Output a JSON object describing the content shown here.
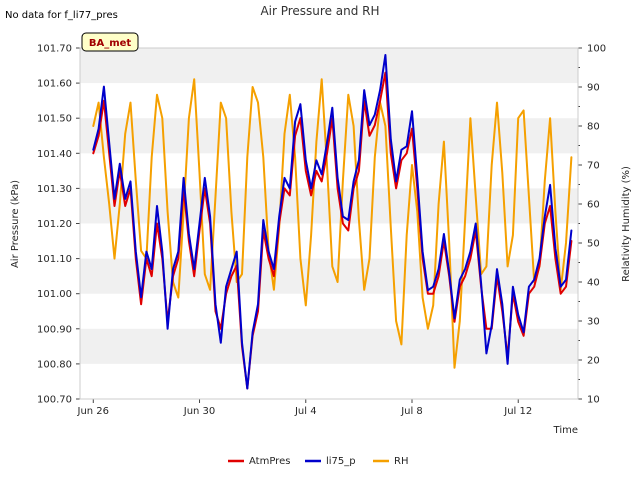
{
  "header": {
    "no_data_note": "No data for f_li77_pres",
    "badge_text": "BA_met"
  },
  "chart_data": {
    "type": "line",
    "title": "Air Pressure and RH",
    "xlabel": "Time",
    "ylabel": "Air Pressure (kPa)",
    "y2label": "Relativity Humidity (%)",
    "x_range": [
      "2024-06-25T12:00",
      "2024-07-14T06:00"
    ],
    "ylim": [
      100.7,
      101.7
    ],
    "y2lim": [
      10,
      100
    ],
    "x_ticks": [
      {
        "label": "Jun 26",
        "day": 26,
        "month": 6
      },
      {
        "label": "Jun 30",
        "day": 30,
        "month": 6
      },
      {
        "label": "Jul 4",
        "day": 4,
        "month": 7
      },
      {
        "label": "Jul 8",
        "day": 8,
        "month": 7
      },
      {
        "label": "Jul 12",
        "day": 12,
        "month": 7
      }
    ],
    "y_ticks": [
      "100.70",
      "100.80",
      "100.90",
      "101.00",
      "101.10",
      "101.20",
      "101.30",
      "101.40",
      "101.50",
      "101.60",
      "101.70"
    ],
    "y2_ticks": [
      "10",
      "20",
      "30",
      "40",
      "50",
      "60",
      "70",
      "80",
      "90",
      "100"
    ],
    "grid": "horizontal bands",
    "legend_position": "bottom",
    "colors": {
      "AtmPres": "#e00000",
      "li75_p": "#0000cc",
      "RH": "#f5a000",
      "band": "#f0f0f0"
    },
    "series": [
      {
        "name": "AtmPres",
        "axis": "left",
        "x_days": [
          0.0,
          0.2,
          0.4,
          0.6,
          0.8,
          1.0,
          1.2,
          1.4,
          1.6,
          1.8,
          2.0,
          2.2,
          2.4,
          2.6,
          2.8,
          3.0,
          3.2,
          3.4,
          3.6,
          3.8,
          4.0,
          4.2,
          4.4,
          4.6,
          4.8,
          5.0,
          5.2,
          5.4,
          5.6,
          5.8,
          6.0,
          6.2,
          6.4,
          6.6,
          6.8,
          7.0,
          7.2,
          7.4,
          7.6,
          7.8,
          8.0,
          8.2,
          8.4,
          8.6,
          8.8,
          9.0,
          9.2,
          9.4,
          9.6,
          9.8,
          10.0,
          10.2,
          10.4,
          10.6,
          10.8,
          11.0,
          11.2,
          11.4,
          11.6,
          11.8,
          12.0,
          12.2,
          12.4,
          12.6,
          12.8,
          13.0,
          13.2,
          13.4,
          13.6,
          13.8,
          14.0,
          14.2,
          14.4,
          14.6,
          14.8,
          15.0,
          15.2,
          15.4,
          15.6,
          15.8,
          16.0,
          16.2,
          16.4,
          16.6,
          16.8,
          17.0,
          17.2,
          17.4,
          17.6,
          17.8,
          18.0
        ],
        "values": [
          101.4,
          101.45,
          101.55,
          101.4,
          101.25,
          101.35,
          101.25,
          101.3,
          101.1,
          100.97,
          101.1,
          101.05,
          101.2,
          101.1,
          100.92,
          101.05,
          101.1,
          101.3,
          101.15,
          101.05,
          101.18,
          101.3,
          101.2,
          100.95,
          100.9,
          101.0,
          101.05,
          101.08,
          100.85,
          100.73,
          100.88,
          100.95,
          101.18,
          101.1,
          101.05,
          101.2,
          101.3,
          101.28,
          101.45,
          101.5,
          101.35,
          101.28,
          101.35,
          101.32,
          101.4,
          101.5,
          101.3,
          101.2,
          101.18,
          101.3,
          101.35,
          101.55,
          101.45,
          101.48,
          101.55,
          101.63,
          101.4,
          101.3,
          101.38,
          101.4,
          101.47,
          101.3,
          101.1,
          101.0,
          101.0,
          101.05,
          101.15,
          101.05,
          100.92,
          101.02,
          101.05,
          101.1,
          101.18,
          101.02,
          100.9,
          100.9,
          101.05,
          100.95,
          100.82,
          101.0,
          100.92,
          100.88,
          101.0,
          101.02,
          101.08,
          101.2,
          101.25,
          101.1,
          101.0,
          101.02,
          101.15
        ]
      },
      {
        "name": "li75_p",
        "axis": "left",
        "x_days": [
          0.0,
          0.2,
          0.4,
          0.6,
          0.8,
          1.0,
          1.2,
          1.4,
          1.6,
          1.8,
          2.0,
          2.2,
          2.4,
          2.6,
          2.8,
          3.0,
          3.2,
          3.4,
          3.6,
          3.8,
          4.0,
          4.2,
          4.4,
          4.6,
          4.8,
          5.0,
          5.2,
          5.4,
          5.6,
          5.8,
          6.0,
          6.2,
          6.4,
          6.6,
          6.8,
          7.0,
          7.2,
          7.4,
          7.6,
          7.8,
          8.0,
          8.2,
          8.4,
          8.6,
          8.8,
          9.0,
          9.2,
          9.4,
          9.6,
          9.8,
          10.0,
          10.2,
          10.4,
          10.6,
          10.8,
          11.0,
          11.2,
          11.4,
          11.6,
          11.8,
          12.0,
          12.2,
          12.4,
          12.6,
          12.8,
          13.0,
          13.2,
          13.4,
          13.6,
          13.8,
          14.0,
          14.2,
          14.4,
          14.6,
          14.8,
          15.0,
          15.2,
          15.4,
          15.6,
          15.8,
          16.0,
          16.2,
          16.4,
          16.6,
          16.8,
          17.0,
          17.2,
          17.4,
          17.6,
          17.8,
          18.0
        ],
        "values": [
          101.41,
          101.47,
          101.59,
          101.43,
          101.27,
          101.37,
          101.27,
          101.32,
          101.12,
          100.99,
          101.12,
          101.07,
          101.25,
          101.12,
          100.9,
          101.07,
          101.12,
          101.33,
          101.17,
          101.07,
          101.2,
          101.33,
          101.22,
          100.97,
          100.86,
          101.02,
          101.07,
          101.12,
          100.86,
          100.73,
          100.89,
          100.97,
          101.21,
          101.12,
          101.07,
          101.22,
          101.33,
          101.3,
          101.49,
          101.54,
          101.38,
          101.3,
          101.38,
          101.34,
          101.43,
          101.53,
          101.33,
          101.22,
          101.21,
          101.32,
          101.38,
          101.58,
          101.48,
          101.51,
          101.58,
          101.68,
          101.44,
          101.32,
          101.41,
          101.42,
          101.52,
          101.33,
          101.12,
          101.01,
          101.02,
          101.07,
          101.17,
          101.06,
          100.93,
          101.04,
          101.07,
          101.12,
          101.2,
          101.03,
          100.83,
          100.91,
          101.07,
          100.97,
          100.8,
          101.02,
          100.94,
          100.89,
          101.02,
          101.04,
          101.1,
          101.22,
          101.31,
          101.13,
          101.02,
          101.04,
          101.18
        ]
      },
      {
        "name": "RH",
        "axis": "right",
        "x_days": [
          0.0,
          0.2,
          0.4,
          0.6,
          0.8,
          1.0,
          1.2,
          1.4,
          1.6,
          1.8,
          2.0,
          2.2,
          2.4,
          2.6,
          2.8,
          3.0,
          3.2,
          3.4,
          3.6,
          3.8,
          4.0,
          4.2,
          4.4,
          4.6,
          4.8,
          5.0,
          5.2,
          5.4,
          5.6,
          5.8,
          6.0,
          6.2,
          6.4,
          6.6,
          6.8,
          7.0,
          7.2,
          7.4,
          7.6,
          7.8,
          8.0,
          8.2,
          8.4,
          8.6,
          8.8,
          9.0,
          9.2,
          9.4,
          9.6,
          9.8,
          10.0,
          10.2,
          10.4,
          10.6,
          10.8,
          11.0,
          11.2,
          11.4,
          11.6,
          11.8,
          12.0,
          12.2,
          12.4,
          12.6,
          12.8,
          13.0,
          13.2,
          13.4,
          13.6,
          13.8,
          14.0,
          14.2,
          14.4,
          14.6,
          14.8,
          15.0,
          15.2,
          15.4,
          15.6,
          15.8,
          16.0,
          16.2,
          16.4,
          16.6,
          16.8,
          17.0,
          17.2,
          17.4,
          17.6,
          17.8,
          18.0
        ],
        "values": [
          80,
          86,
          72,
          60,
          46,
          60,
          78,
          86,
          66,
          48,
          46,
          72,
          88,
          82,
          58,
          40,
          36,
          58,
          82,
          92,
          68,
          42,
          38,
          62,
          86,
          82,
          58,
          40,
          42,
          72,
          90,
          86,
          72,
          48,
          38,
          54,
          78,
          88,
          72,
          46,
          34,
          52,
          76,
          92,
          70,
          44,
          40,
          66,
          88,
          80,
          56,
          38,
          46,
          72,
          86,
          80,
          54,
          30,
          24,
          52,
          70,
          58,
          36,
          28,
          34,
          60,
          76,
          50,
          18,
          30,
          56,
          82,
          62,
          42,
          44,
          70,
          86,
          68,
          44,
          52,
          82,
          84,
          62,
          40,
          44,
          66,
          82,
          58,
          38,
          50,
          72
        ]
      }
    ]
  }
}
